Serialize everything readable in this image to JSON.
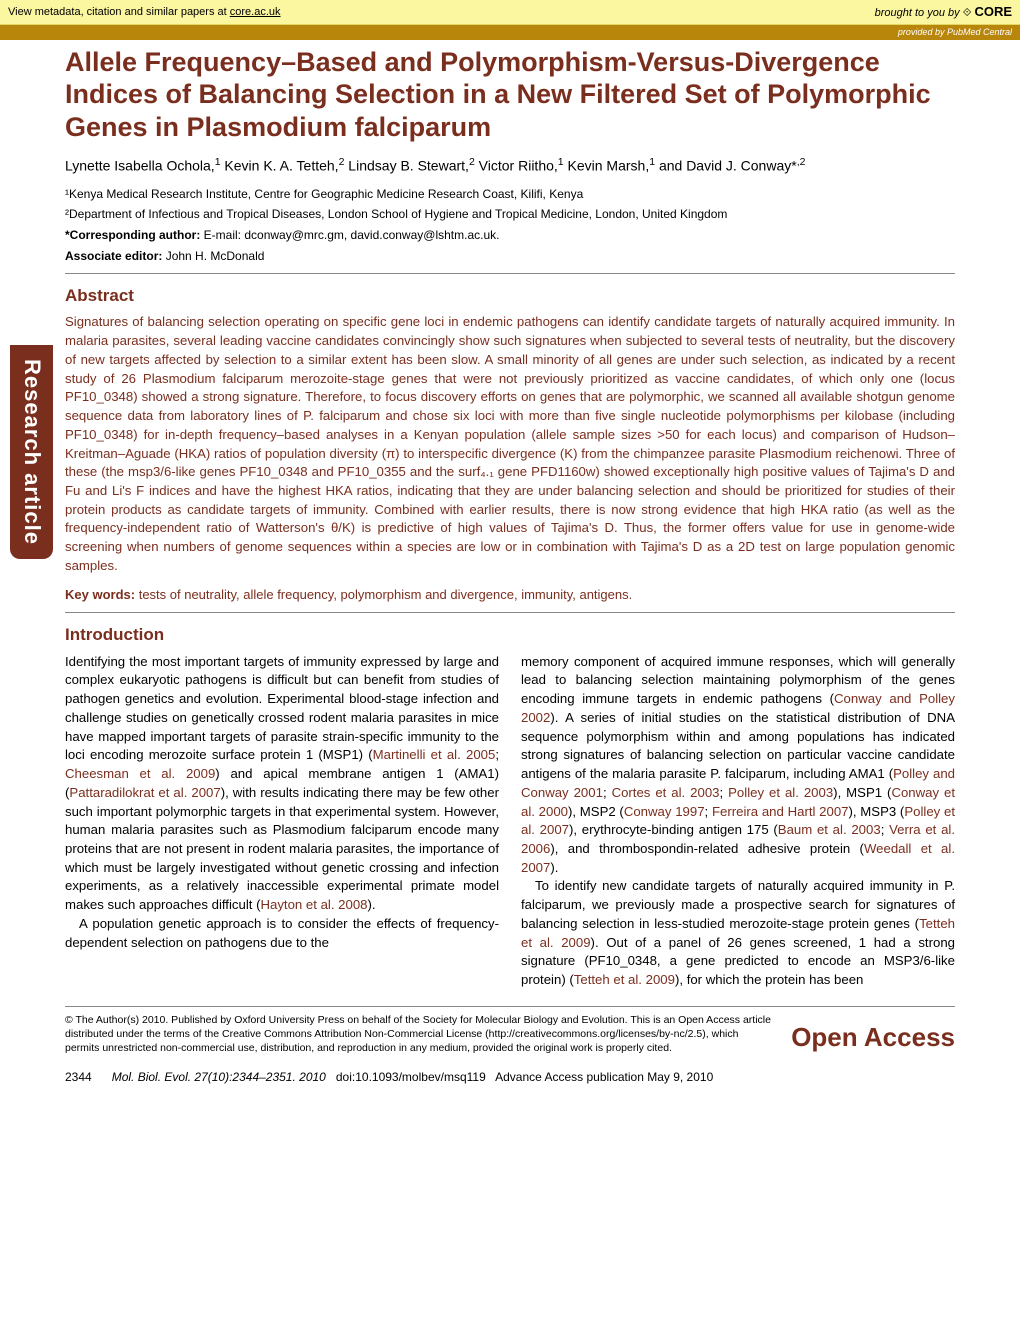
{
  "metadata_bar": {
    "left_text": "View metadata, citation and similar papers at ",
    "link_text": "core.ac.uk",
    "right_prefix": "brought to you by ",
    "core_label": "CORE"
  },
  "provided_bar": {
    "prefix": "provided by ",
    "source": "PubMed Central"
  },
  "side_tab": "Research article",
  "title": "Allele Frequency–Based and Polymorphism-Versus-Divergence Indices of Balancing Selection in a New Filtered Set of Polymorphic Genes in Plasmodium falciparum",
  "authors_html": "Lynette Isabella Ochola,<sup>1</sup> Kevin K. A. Tetteh,<sup>2</sup> Lindsay B. Stewart,<sup>2</sup> Victor Riitho,<sup>1</sup> Kevin Marsh,<sup>1</sup> and David J. Conway*<sup>,2</sup>",
  "affiliations": [
    "¹Kenya Medical Research Institute, Centre for Geographic Medicine Research Coast, Kilifi, Kenya",
    "²Department of Infectious and Tropical Diseases, London School of Hygiene and Tropical Medicine, London, United Kingdom"
  ],
  "corresponding_label": "*Corresponding author:",
  "corresponding_value": " E-mail: dconway@mrc.gm, david.conway@lshtm.ac.uk.",
  "associate_label": "Associate editor:",
  "associate_value": " John H. McDonald",
  "abstract_head": "Abstract",
  "abstract_body": "Signatures of balancing selection operating on specific gene loci in endemic pathogens can identify candidate targets of naturally acquired immunity. In malaria parasites, several leading vaccine candidates convincingly show such signatures when subjected to several tests of neutrality, but the discovery of new targets affected by selection to a similar extent has been slow. A small minority of all genes are under such selection, as indicated by a recent study of 26 Plasmodium falciparum merozoite-stage genes that were not previously prioritized as vaccine candidates, of which only one (locus PF10_0348) showed a strong signature. Therefore, to focus discovery efforts on genes that are polymorphic, we scanned all available shotgun genome sequence data from laboratory lines of P. falciparum and chose six loci with more than five single nucleotide polymorphisms per kilobase (including PF10_0348) for in-depth frequency–based analyses in a Kenyan population (allele sample sizes >50 for each locus) and comparison of Hudson–Kreitman–Aguade (HKA) ratios of population diversity (π) to interspecific divergence (K) from the chimpanzee parasite Plasmodium reichenowi. Three of these (the msp3/6-like genes PF10_0348 and PF10_0355 and the surf₄.₁ gene PFD1160w) showed exceptionally high positive values of Tajima's D and Fu and Li's F indices and have the highest HKA ratios, indicating that they are under balancing selection and should be prioritized for studies of their protein products as candidate targets of immunity. Combined with earlier results, there is now strong evidence that high HKA ratio (as well as the frequency-independent ratio of Watterson's θ/K) is predictive of high values of Tajima's D. Thus, the former offers value for use in genome-wide screening when numbers of genome sequences within a species are low or in combination with Tajima's D as a 2D test on large population genomic samples.",
  "keywords_label": "Key words:",
  "keywords_value": " tests of neutrality, allele frequency, polymorphism and divergence, immunity, antigens.",
  "intro_head": "Introduction",
  "col1_p1_a": "Identifying the most important targets of immunity expressed by large and complex eukaryotic pathogens is difficult but can benefit from studies of pathogen genetics and evolution. Experimental blood-stage infection and challenge studies on genetically crossed rodent malaria parasites in mice have mapped important targets of parasite strain-specific immunity to the loci encoding merozoite surface protein 1 (MSP1) (",
  "ref_martinelli": "Martinelli et al. 2005",
  "col1_p1_b": "; ",
  "ref_cheesman": "Cheesman et al. 2009",
  "col1_p1_c": ") and apical membrane antigen 1 (AMA1) (",
  "ref_pattar": "Pattaradilokrat et al. 2007",
  "col1_p1_d": "), with results indicating there may be few other such important polymorphic targets in that experimental system. However, human malaria parasites such as Plasmodium falciparum encode many proteins that are not present in rodent malaria parasites, the importance of which must be largely investigated without genetic crossing and infection experiments, as a relatively inaccessible experimental primate model makes such approaches difficult (",
  "ref_hayton": "Hayton et al. 2008",
  "col1_p1_e": ").",
  "col1_p2": "A population genetic approach is to consider the effects of frequency-dependent selection on pathogens due to the",
  "col2_p1_a": "memory component of acquired immune responses, which will generally lead to balancing selection maintaining polymorphism of the genes encoding immune targets in endemic pathogens (",
  "ref_conwaypolley": "Conway and Polley 2002",
  "col2_p1_b": "). A series of initial studies on the statistical distribution of DNA sequence polymorphism within and among populations has indicated strong signatures of balancing selection on particular vaccine candidate antigens of the malaria parasite P. falciparum, including AMA1 (",
  "ref_polleyconway": "Polley and Conway 2001",
  "col2_p1_c": "; ",
  "ref_cortes": "Cortes et al. 2003",
  "col2_p1_d": "; ",
  "ref_polley2003": "Polley et al. 2003",
  "col2_p1_e": "), MSP1 (",
  "ref_conway2000": "Conway et al. 2000",
  "col2_p1_f": "), MSP2 (",
  "ref_conway1997": "Conway 1997",
  "col2_p1_g": "; ",
  "ref_ferreira": "Ferreira and Hartl 2007",
  "col2_p1_h": "), MSP3 (",
  "ref_polley2007": "Polley et al. 2007",
  "col2_p1_i": "), erythrocyte-binding antigen 175 (",
  "ref_baum": "Baum et al. 2003",
  "col2_p1_j": "; ",
  "ref_verra": "Verra et al. 2006",
  "col2_p1_k": "), and thrombospondin-related adhesive protein (",
  "ref_weedall": "Weedall et al. 2007",
  "col2_p1_l": ").",
  "col2_p2_a": "To identify new candidate targets of naturally acquired immunity in P. falciparum, we previously made a prospective search for signatures of balancing selection in less-studied merozoite-stage protein genes (",
  "ref_tetteh1": "Tetteh et al. 2009",
  "col2_p2_b": "). Out of a panel of 26 genes screened, 1 had a strong signature (PF10_0348, a gene predicted to encode an MSP3/6-like protein) (",
  "ref_tetteh2": "Tetteh et al. 2009",
  "col2_p2_c": "), for which the protein has been",
  "license": "© The Author(s) 2010. Published by Oxford University Press on behalf of the Society for Molecular Biology and Evolution. This is an Open Access article distributed under the terms of the Creative Commons Attribution Non-Commercial License (http://creativecommons.org/licenses/by-nc/2.5), which permits unrestricted non-commercial use, distribution, and reproduction in any medium, provided the original work is properly cited.",
  "open_access": "Open Access",
  "footer": {
    "page": "2344",
    "citation": "Mol. Biol. Evol. 27(10):2344–2351. 2010",
    "doi": "doi:10.1093/molbev/msq119",
    "advance": "Advance Access publication May 9, 2010"
  },
  "colors": {
    "brand": "#7a2e1e",
    "metabar_bg": "#fbf6a0",
    "provided_bg": "#b8860b"
  }
}
